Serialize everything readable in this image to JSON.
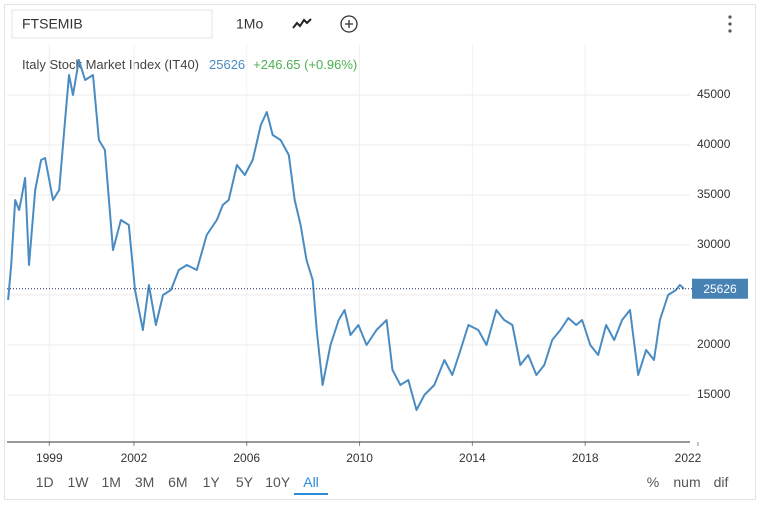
{
  "toolbar": {
    "symbol": "FTSEMIB",
    "interval": "1Mo"
  },
  "chart_data": {
    "type": "line",
    "title": "Italy Stock Market Index (IT40)",
    "change_label": "+246.65 (+0.96%)",
    "x": [
      1997.54,
      1997.65,
      1997.79,
      1997.93,
      1998.0,
      1998.14,
      1998.28,
      1998.5,
      1998.71,
      1998.85,
      1999.13,
      1999.35,
      1999.56,
      1999.7,
      1999.84,
      2000.05,
      2000.27,
      2000.55,
      2000.76,
      2000.97,
      2001.26,
      2001.54,
      2001.82,
      2002.04,
      2002.32,
      2002.53,
      2002.78,
      2003.03,
      2003.31,
      2003.59,
      2003.88,
      2004.23,
      2004.58,
      2004.94,
      2005.15,
      2005.36,
      2005.65,
      2005.93,
      2006.21,
      2006.5,
      2006.71,
      2006.92,
      2007.2,
      2007.49,
      2007.7,
      2007.91,
      2008.12,
      2008.34,
      2008.48,
      2008.69,
      2008.97,
      2009.26,
      2009.47,
      2009.68,
      2009.96,
      2010.25,
      2010.6,
      2010.96,
      2011.17,
      2011.45,
      2011.73,
      2012.02,
      2012.3,
      2012.65,
      2013.01,
      2013.29,
      2013.58,
      2013.86,
      2014.21,
      2014.5,
      2014.85,
      2015.13,
      2015.42,
      2015.7,
      2015.98,
      2016.27,
      2016.55,
      2016.83,
      2017.12,
      2017.4,
      2017.68,
      2017.89,
      2018.18,
      2018.46,
      2018.74,
      2019.03,
      2019.31,
      2019.59,
      2019.88,
      2020.16,
      2020.44,
      2020.65,
      2020.94,
      2021.22,
      2021.36,
      2021.5
    ],
    "series": [
      {
        "name": "Italy Stock Market Index (IT40)",
        "color": "#4a8cc2",
        "values": [
          24500,
          28000,
          34500,
          33500,
          34500,
          36700,
          28000,
          35500,
          38500,
          38700,
          34500,
          35500,
          42500,
          47000,
          45000,
          48500,
          46500,
          47000,
          40500,
          39500,
          29500,
          32500,
          32000,
          25500,
          21500,
          26000,
          22000,
          25000,
          25500,
          27500,
          28000,
          27500,
          31000,
          32500,
          34000,
          34500,
          38000,
          37000,
          38500,
          42000,
          43300,
          41000,
          40500,
          39000,
          34500,
          32000,
          28500,
          26500,
          21500,
          16000,
          20000,
          22500,
          23500,
          21000,
          22000,
          20000,
          21500,
          22500,
          17500,
          16000,
          16500,
          13500,
          15000,
          16000,
          18500,
          17000,
          19500,
          22000,
          21500,
          20000,
          23500,
          22500,
          22000,
          18000,
          19000,
          17000,
          18000,
          20500,
          21500,
          22700,
          22000,
          22500,
          20000,
          19000,
          22000,
          20500,
          22500,
          23500,
          17000,
          19500,
          18500,
          22500,
          25000,
          25500,
          26000,
          25626
        ]
      }
    ],
    "xlim": [
      1997.5,
      2022
    ],
    "xticks": [
      1999,
      2002,
      2006,
      2010,
      2014,
      2018,
      2022
    ],
    "ylim": [
      10000,
      50000
    ],
    "yticks": [
      15000,
      20000,
      25000,
      30000,
      35000,
      40000,
      45000
    ],
    "grid": true
  },
  "ranges": [
    "1D",
    "1W",
    "1M",
    "3M",
    "6M",
    "1Y",
    "5Y",
    "10Y",
    "All"
  ],
  "modes": [
    "%",
    "num",
    "dif"
  ]
}
